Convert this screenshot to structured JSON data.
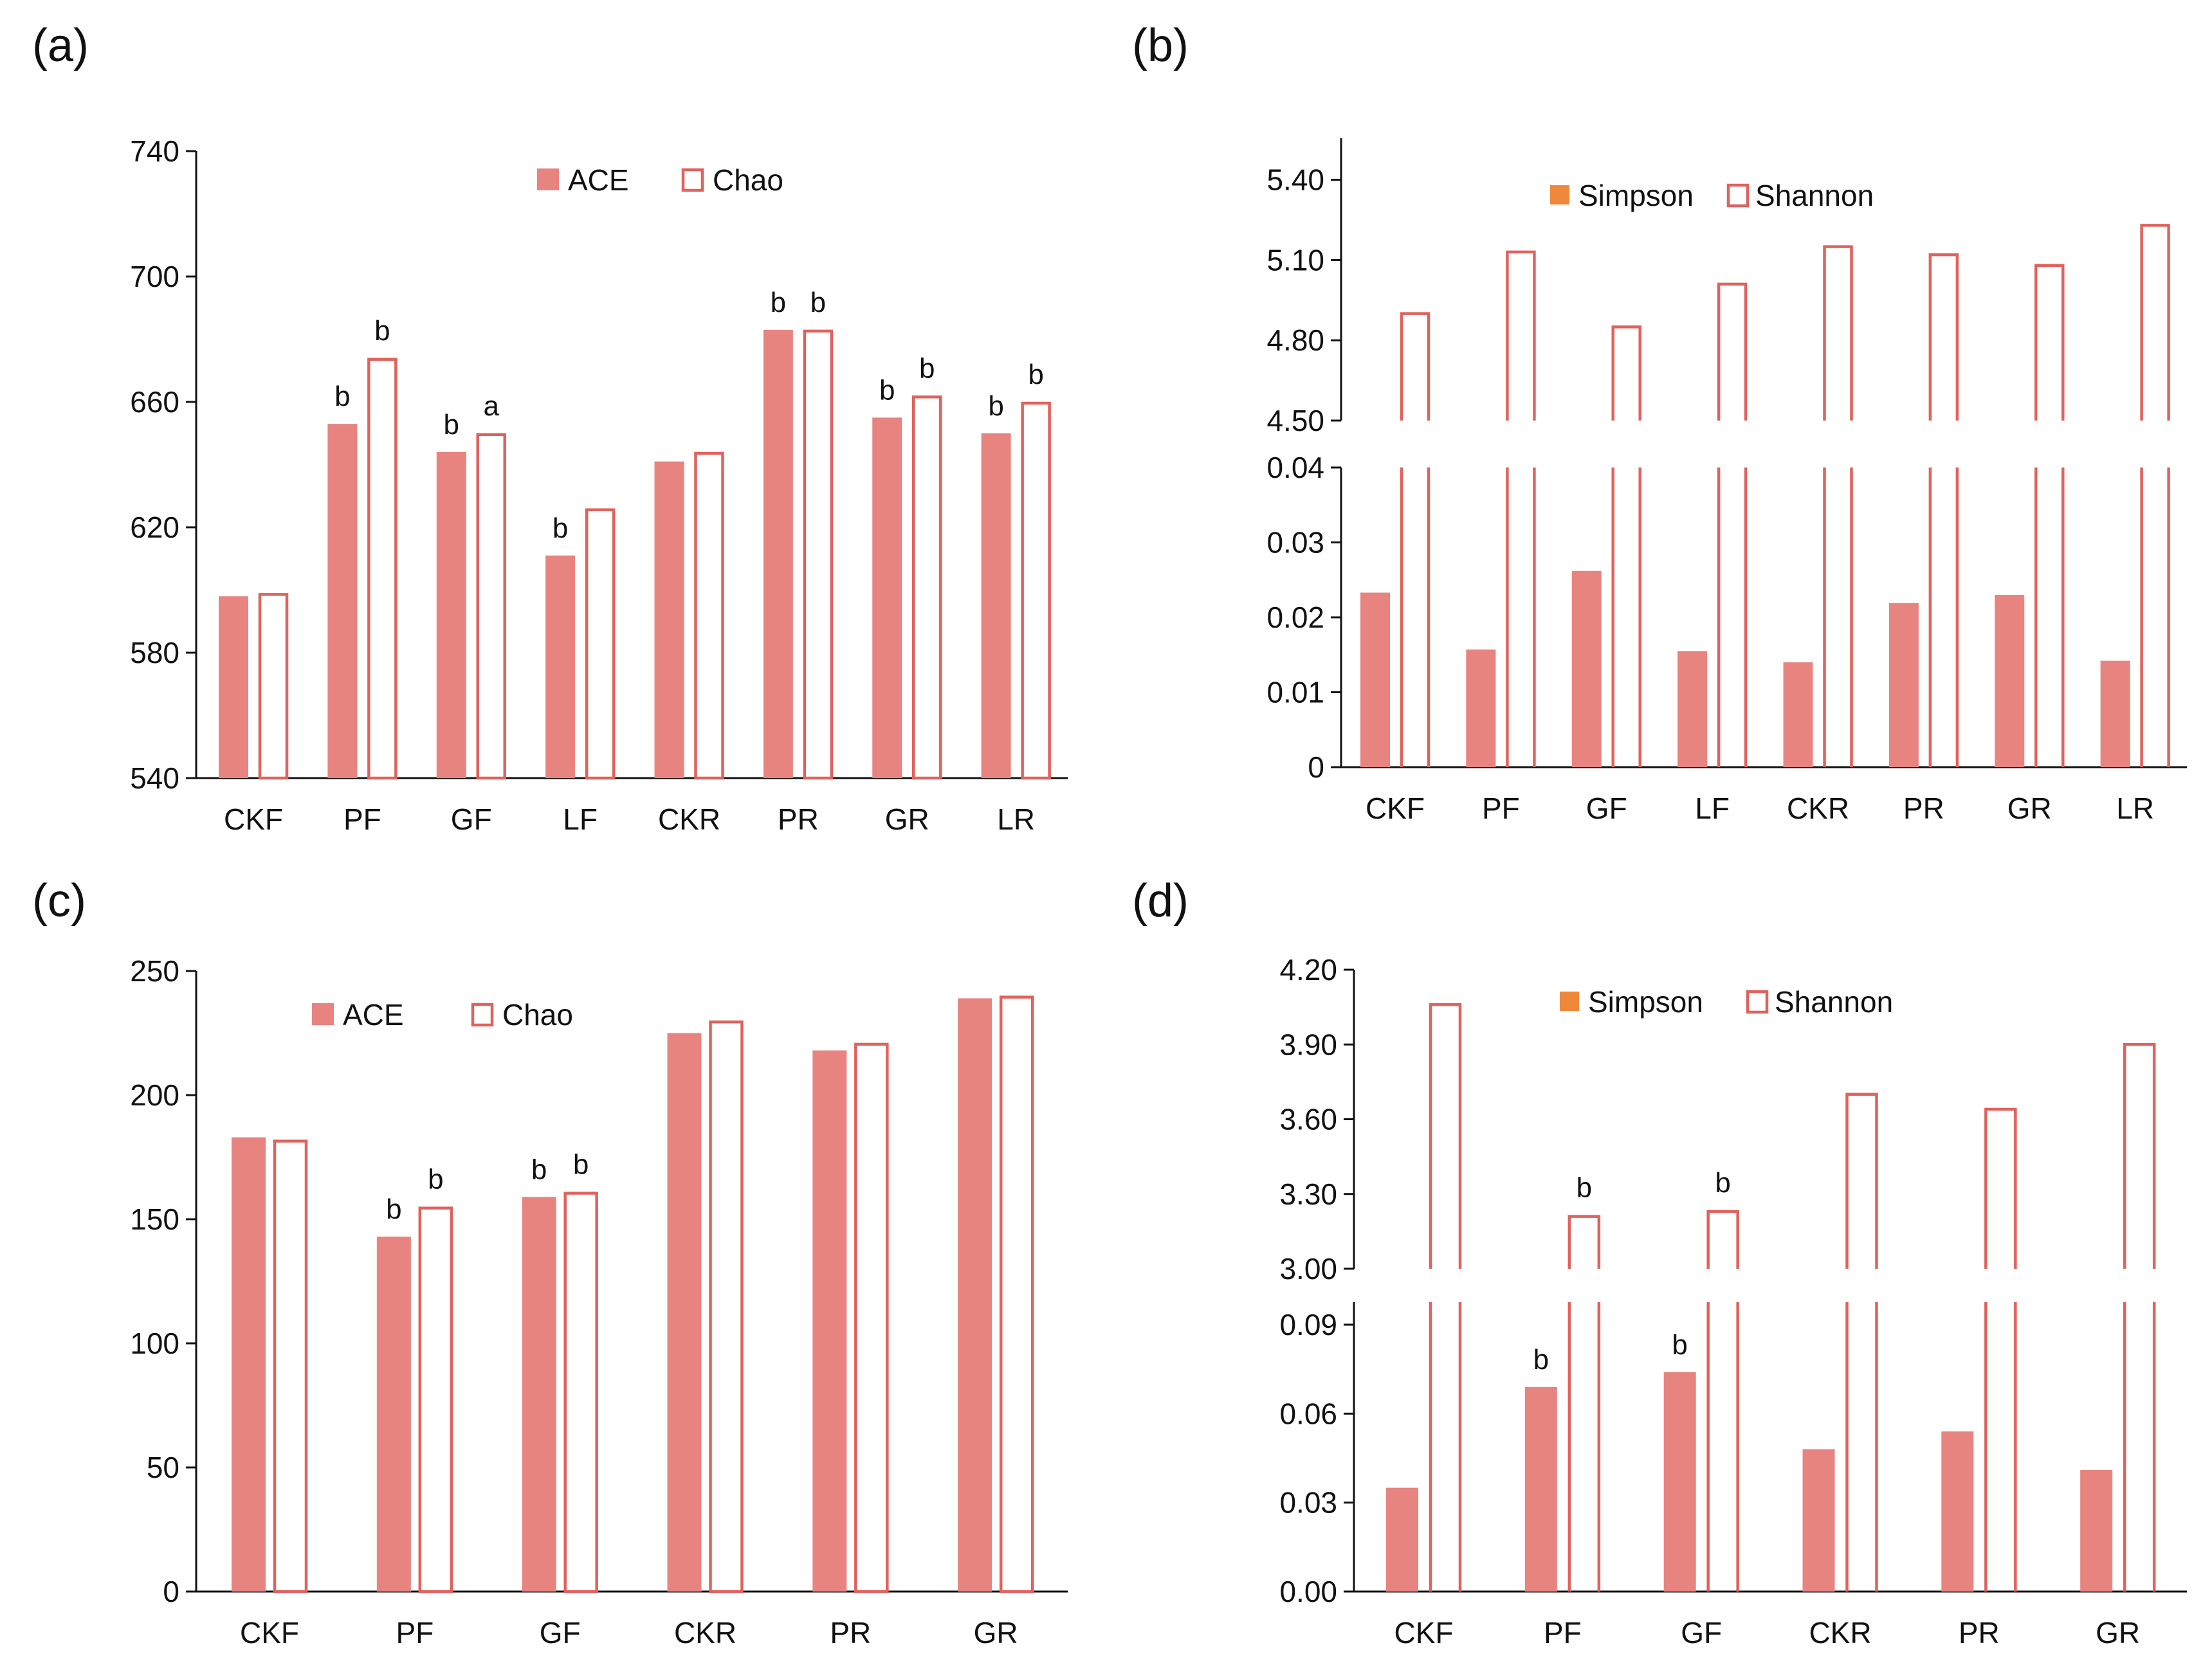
{
  "colors": {
    "bar": "#e88480",
    "outline": "#e0625c",
    "legend_simpson": "#f0883c",
    "axis": "#111111",
    "letter": "#333333"
  },
  "chart_data": [
    {
      "panel": "(a)",
      "type": "bar",
      "categories": [
        "CKF",
        "PF",
        "GF",
        "LF",
        "CKR",
        "PR",
        "GR",
        "LR"
      ],
      "series": [
        {
          "name": "ACE",
          "style": "filled",
          "values": [
            598,
            653,
            644,
            611,
            641,
            683,
            655,
            650
          ],
          "letters": [
            "",
            "b",
            "b",
            "b",
            "",
            "b",
            "b",
            "b"
          ]
        },
        {
          "name": "Chao",
          "style": "outline",
          "values": [
            599,
            674,
            650,
            626,
            644,
            683,
            662,
            660
          ],
          "letters": [
            "",
            "b",
            "a",
            "",
            "",
            "b",
            "b",
            "b"
          ]
        }
      ],
      "yticks": [
        "540",
        "580",
        "620",
        "660",
        "700",
        "740"
      ],
      "ylim": [
        540,
        740
      ],
      "legend": "top-center"
    },
    {
      "panel": "(b)",
      "type": "bar",
      "broken_axis": true,
      "categories": [
        "CKF",
        "PF",
        "GF",
        "LF",
        "CKR",
        "PR",
        "GR",
        "LR"
      ],
      "series": [
        {
          "name": "Simpson",
          "style": "filled",
          "values": [
            0.0233,
            0.0157,
            0.0262,
            0.0155,
            0.014,
            0.0219,
            0.023,
            0.0142
          ]
        },
        {
          "name": "Shannon",
          "style": "outline",
          "values": [
            4.9,
            5.13,
            4.85,
            5.01,
            5.15,
            5.12,
            5.08,
            5.23
          ]
        }
      ],
      "lower_ylim": [
        0,
        0.04
      ],
      "upper_ylim": [
        4.5,
        5.5
      ],
      "lower_yticks": [
        "0",
        "0.01",
        "0.02",
        "0.03",
        "0.04"
      ],
      "upper_yticks": [
        "4.50",
        "4.80",
        "5.10",
        "5.40"
      ],
      "legend": "top-center"
    },
    {
      "panel": "(c)",
      "type": "bar",
      "categories": [
        "CKF",
        "PF",
        "GF",
        "CKR",
        "PR",
        "GR"
      ],
      "series": [
        {
          "name": "ACE",
          "style": "filled",
          "values": [
            183,
            143,
            159,
            225,
            218,
            239
          ],
          "letters": [
            "",
            "b",
            "b",
            "",
            "",
            ""
          ]
        },
        {
          "name": "Chao",
          "style": "outline",
          "values": [
            182,
            155,
            161,
            230,
            221,
            240
          ],
          "letters": [
            "",
            "b",
            "b",
            "",
            "",
            ""
          ]
        }
      ],
      "yticks": [
        "0",
        "50",
        "100",
        "150",
        "200",
        "250"
      ],
      "ylim": [
        0,
        250
      ],
      "legend": "top-center"
    },
    {
      "panel": "(d)",
      "type": "bar",
      "broken_axis": true,
      "categories": [
        "CKF",
        "PF",
        "GF",
        "CKR",
        "PR",
        "GR"
      ],
      "series": [
        {
          "name": "Simpson",
          "style": "filled",
          "values": [
            0.035,
            0.069,
            0.074,
            0.048,
            0.054,
            0.041
          ],
          "letters": [
            "",
            "b",
            "b",
            "",
            "",
            ""
          ]
        },
        {
          "name": "Shannon",
          "style": "outline",
          "values": [
            4.06,
            3.21,
            3.23,
            3.7,
            3.64,
            3.9
          ],
          "letters": [
            "",
            "b",
            "b",
            "",
            "",
            ""
          ]
        }
      ],
      "lower_ylim": [
        0,
        0.09
      ],
      "upper_ylim": [
        3.0,
        4.2
      ],
      "lower_yticks": [
        "0.00",
        "0.03",
        "0.06",
        "0.09"
      ],
      "upper_yticks": [
        "3.00",
        "3.30",
        "3.60",
        "3.90",
        "4.20"
      ],
      "legend": "top-center"
    }
  ]
}
